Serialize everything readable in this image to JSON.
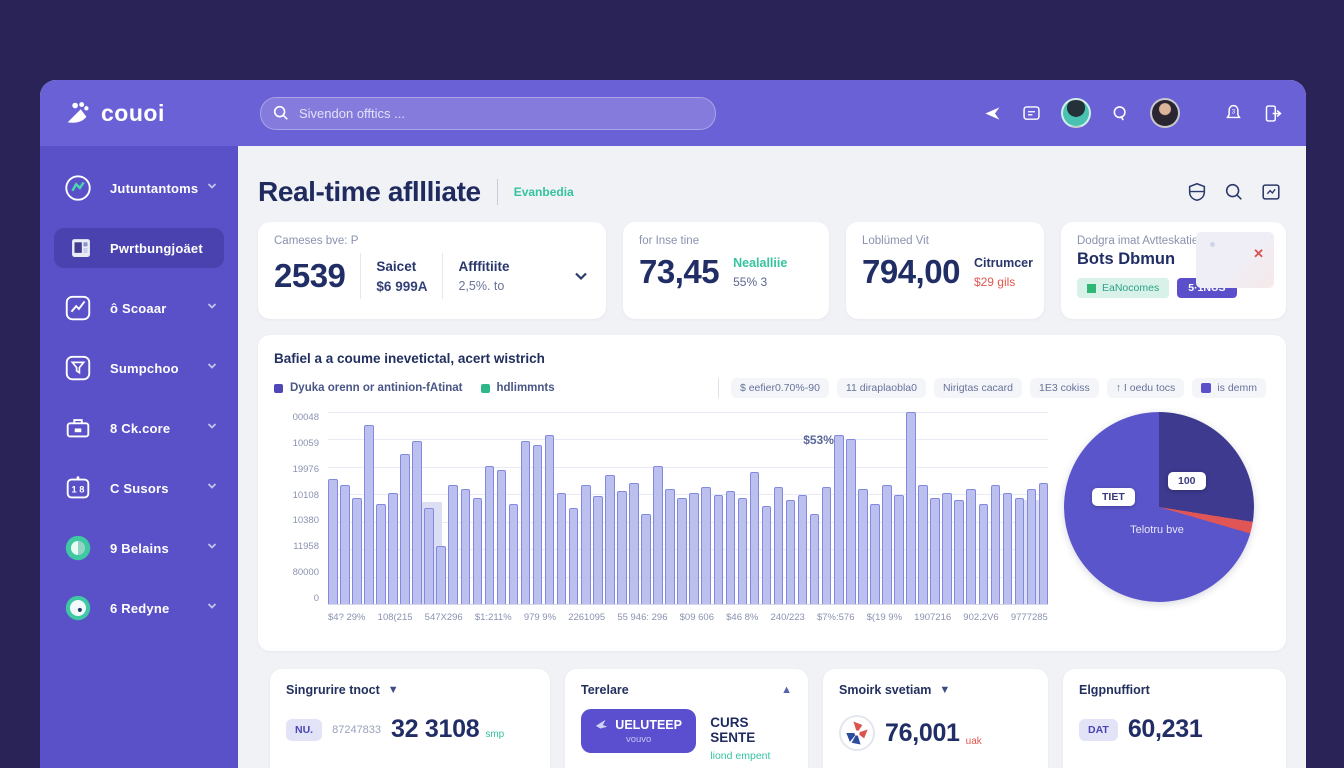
{
  "app": {
    "logo": "couoi"
  },
  "colors": {
    "frame": "#2a2357",
    "header": "#6b61d7",
    "sidebar": "#5a51c9",
    "accent": "#5b50c9",
    "teal": "#35c3a0",
    "red": "#e2574f",
    "bar_fill": "#bcc0ef",
    "bar_border": "#8389df"
  },
  "header": {
    "search_placeholder": "Sivendon offtics ...",
    "icons": [
      "send-icon",
      "chat-icon",
      "avatar-1",
      "search-icon",
      "avatar-2",
      "bell-icon",
      "logout-icon"
    ]
  },
  "sidebar": {
    "items": [
      {
        "label": "Jutuntantoms",
        "icon": "analytics-circle-icon",
        "active": false,
        "chevron": true
      },
      {
        "label": "Pwrtbungjoäet",
        "icon": "dashboard-icon",
        "active": true,
        "chevron": false
      },
      {
        "label": "ô Scoaar",
        "icon": "trend-chart-icon",
        "active": false,
        "chevron": true
      },
      {
        "label": "Sumpchoo",
        "icon": "funnel-icon",
        "active": false,
        "chevron": true
      },
      {
        "label": "8 Ck.core",
        "icon": "briefcase-icon",
        "active": false,
        "chevron": true
      },
      {
        "label": "C Susors",
        "icon": "users-badge-icon",
        "active": false,
        "chevron": true
      },
      {
        "label": "9 Belains",
        "icon": "coin-icon",
        "active": false,
        "chevron": true
      },
      {
        "label": "6 Redyne",
        "icon": "clock-icon",
        "active": false,
        "chevron": true
      }
    ]
  },
  "main": {
    "title": "Real-time afllliate",
    "subtitle": "Evanbedia",
    "action_icons": [
      "shield-icon",
      "search-icon",
      "export-icon"
    ],
    "kpi": [
      {
        "label": "Cameses bve: P",
        "value": "2539",
        "col1_title": "Saicet",
        "col1_value": "$6 999A",
        "col2_title": "Afffitiite",
        "col2_value": "2,5%. to"
      },
      {
        "label": "for Inse tine",
        "value": "73,45",
        "side_title": "Nealalliie",
        "side_value": "55% 3"
      },
      {
        "label": "Loblümed Vit",
        "value": "794,00",
        "side_title": "Citrumcer",
        "side_value": "$29 gils"
      },
      {
        "label": "Dodgra imat Avtteskatie",
        "value": "Bots Dbmun",
        "pill1": "EaNocomes",
        "pill2": "5·1NUS"
      }
    ],
    "bottom": [
      {
        "title": "Singrurire tnoct",
        "badge": "NU.",
        "small": "87247833",
        "value": "32 3108",
        "suffix": "smp"
      },
      {
        "title": "Terelare",
        "button_title": "UELUTEEP",
        "button_sub": "vouvo",
        "right_title": "CURS SENTE",
        "right_sub": "liond empent"
      },
      {
        "title": "Smoirk svetiam",
        "value": "76,001",
        "suffix": "uak"
      },
      {
        "title": "Elgpnuffiort",
        "badge": "DAT",
        "value": "60,231"
      }
    ]
  },
  "chart_data": [
    {
      "type": "bar",
      "title": "Bafiel a a coume inevetictal, acert wistrich",
      "legend": [
        {
          "label": "Dyuka orenn or antinion-fAtinat",
          "color": "#4f46b8"
        },
        {
          "label": "hdlimmnts",
          "color": "#2eb88a"
        }
      ],
      "filters": [
        "$ eefier0.70%-90",
        "11 diraplaobla0",
        "Nirigtas cacard",
        "1E3 cokiss",
        "↑ I oedu tocs",
        "is demm"
      ],
      "y_ticks": [
        "00048",
        "10059",
        "19976",
        "10108",
        "10380",
        "11958",
        "80000",
        "0"
      ],
      "x_ticks": [
        "$4? 29%",
        "108(215",
        "547X296",
        "$1:211%",
        "979 9%",
        "2261095",
        "55 946: 296",
        "$09 606",
        "$46 8%",
        "240/223",
        "$7%:576",
        "$(19 9%",
        "1907216",
        "902.2V6",
        "9777285"
      ],
      "values": [
        65,
        62,
        55,
        93,
        52,
        58,
        78,
        85,
        50,
        30,
        62,
        60,
        55,
        72,
        70,
        52,
        85,
        83,
        88,
        58,
        50,
        62,
        56,
        67,
        59,
        63,
        47,
        72,
        60,
        55,
        58,
        61,
        57,
        59,
        55,
        69,
        51,
        61,
        54,
        57,
        47,
        61,
        88,
        86,
        60,
        52,
        62,
        57,
        100,
        62,
        55,
        58,
        54,
        60,
        52,
        62,
        58,
        55,
        60,
        63
      ],
      "ylim": [
        0,
        100
      ],
      "grid": true,
      "annotation": "$53%"
    },
    {
      "type": "pie",
      "center_label": "Telotru bve",
      "slices": [
        {
          "label": "100",
          "value": 27.5,
          "color": "#3d3a8f"
        },
        {
          "label": "",
          "value": 2,
          "color": "#e05555"
        },
        {
          "label": "TIET",
          "value": 70.5,
          "color": "#5b55cb"
        }
      ]
    }
  ]
}
